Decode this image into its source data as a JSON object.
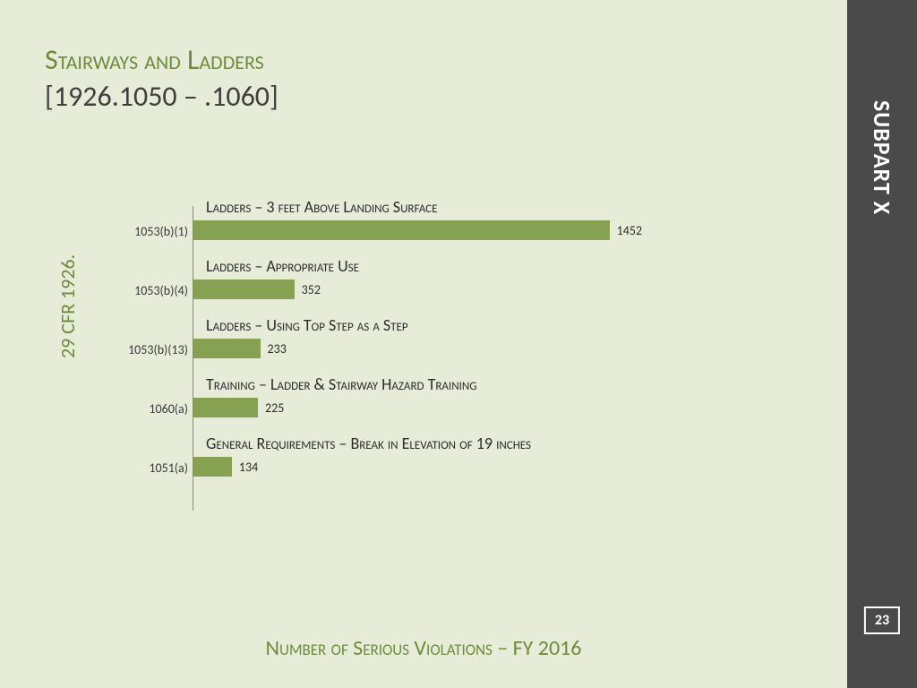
{
  "colors": {
    "slide_bg": "#e7ecd8",
    "sidebar_bg": "#4a4a4a",
    "accent_green": "#6e8b3d",
    "bar_fill": "#87a152",
    "title_green": "#6e8b3d",
    "text_dark": "#3f3f3f"
  },
  "title": {
    "line1": "Stairways and Ladders",
    "line2": "[1926.1050 – .1060]"
  },
  "yaxis_label": "29 CFR 1926.",
  "xaxis_label": "Number of Serious Violations – FY 2016",
  "sidebar": {
    "label": "SUBPART X",
    "page": "23"
  },
  "chart": {
    "type": "bar-horizontal",
    "max_value": 1500,
    "bar_color": "#87a152",
    "desc_fontsize": 18,
    "code_fontsize": 14,
    "val_fontsize": 14,
    "rows": [
      {
        "code": "1053(b)(1)",
        "desc": "Ladders – 3 feet Above Landing Surface",
        "value": 1452
      },
      {
        "code": "1053(b)(4)",
        "desc": "Ladders – Appropriate Use",
        "value": 352
      },
      {
        "code": "1053(b)(13)",
        "desc": "Ladders – Using Top Step as a Step",
        "value": 233
      },
      {
        "code": "1060(a)",
        "desc": "Training – Ladder & Stairway Hazard Training",
        "value": 225
      },
      {
        "code": "1051(a)",
        "desc": "General Requirements – Break in Elevation of 19 inches",
        "value": 134
      }
    ]
  }
}
